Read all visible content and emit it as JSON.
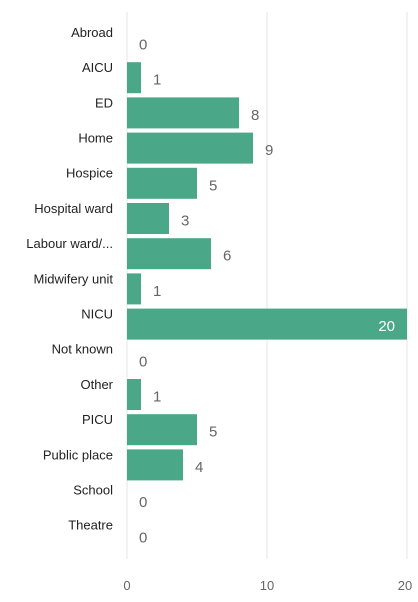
{
  "chart_data": {
    "type": "bar",
    "orientation": "horizontal",
    "categories": [
      "Abroad",
      "AICU",
      "ED",
      "Home",
      "Hospice",
      "Hospital ward",
      "Labour ward/...",
      "Midwifery unit",
      "NICU",
      "Not known",
      "Other",
      "PICU",
      "Public place",
      "School",
      "Theatre"
    ],
    "values": [
      0,
      1,
      8,
      9,
      5,
      3,
      6,
      1,
      20,
      0,
      1,
      5,
      4,
      0,
      0
    ],
    "title": "",
    "xlabel": "",
    "ylabel": "",
    "xlim": [
      0,
      20
    ],
    "xticks": [
      0,
      10,
      20
    ],
    "grid": true,
    "legend": "none",
    "bar_color": "#4aa788",
    "grid_color": "#e6e6e6"
  }
}
